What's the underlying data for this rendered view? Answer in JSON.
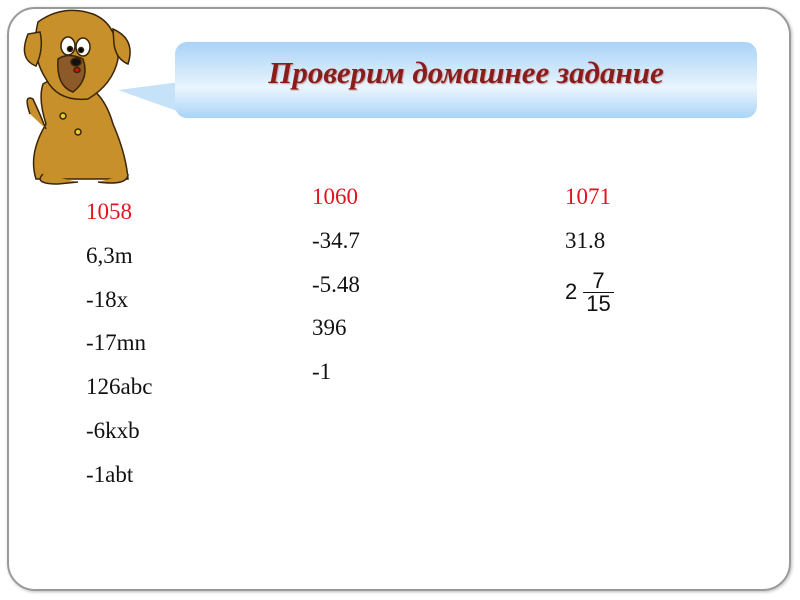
{
  "slide": {
    "title": "Проверим домашнее задание",
    "colors": {
      "title": "#8a1c1c",
      "exercise_number": "#e0141e",
      "bubble": "#a9d3f7"
    },
    "illustration": "cartoon-dog-icon"
  },
  "columns": [
    {
      "number": "1058",
      "answers": [
        "6,3m",
        "-18x",
        "-17mn",
        "126abc",
        "-6kxb",
        "-1abt"
      ]
    },
    {
      "number": "1060",
      "answers": [
        "-34.7",
        "-5.48",
        "396",
        "-1"
      ]
    },
    {
      "number": "1071",
      "answers": [
        "31.8"
      ],
      "fraction": {
        "whole": "2",
        "numerator": "7",
        "denominator": "15"
      }
    }
  ]
}
